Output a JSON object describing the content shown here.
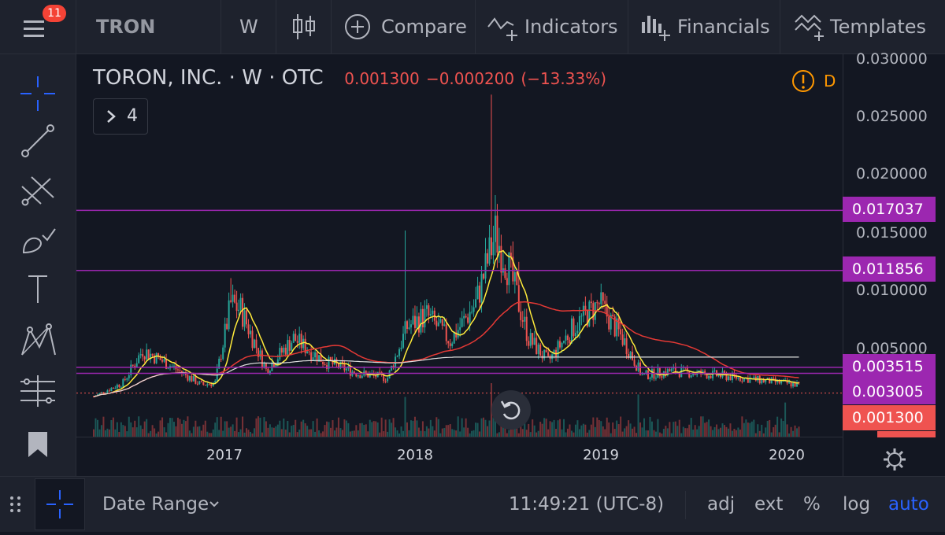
{
  "topbar": {
    "notification_count": "11",
    "symbol": "TRON",
    "interval": "W",
    "compare_label": "Compare",
    "indicators_label": "Indicators",
    "financials_label": "Financials",
    "templates_label": "Templates"
  },
  "legend": {
    "name": "TORON, INC.",
    "interval": "W",
    "exchange": "OTC",
    "price": "0.001300",
    "change": "−0.000200",
    "change_pct": "(−13.33%)",
    "indicators_toggle": "4",
    "alert_letter": "D"
  },
  "colors": {
    "up": "#26a69a",
    "down": "#ef5350",
    "hline": "#9c27b0",
    "ma_fast": "#ffeb3b",
    "ma_slow": "#e53935",
    "ma_long": "#e0e0e0",
    "accent": "#2962ff"
  },
  "price_axis": {
    "ticks": [
      "0.030000",
      "0.025000",
      "0.020000",
      "0.015000",
      "0.010000",
      "0.005000"
    ],
    "labels": [
      {
        "text": "0.017037",
        "color": "#9c27b0"
      },
      {
        "text": "0.011856",
        "color": "#9c27b0"
      },
      {
        "text": "0.003515",
        "color": "#9c27b0"
      },
      {
        "text": "0.003005",
        "color": "#9c27b0"
      },
      {
        "text": "0.001300",
        "color": "#ef5350"
      }
    ]
  },
  "time_axis": {
    "ticks": [
      "2017",
      "2018",
      "2019",
      "2020"
    ]
  },
  "horizontal_lines": [
    0.017037,
    0.011856,
    0.003515,
    0.003005
  ],
  "last_price": 0.0013,
  "bottombar": {
    "date_range_label": "Date Range",
    "clock": "11:49:21 (UTC-8)",
    "adj": "adj",
    "ext": "ext",
    "percent": "%",
    "log": "log",
    "auto": "auto"
  },
  "left_tools": [
    "crosshair-icon",
    "trendline-icon",
    "pitchfork-icon",
    "brush-icon",
    "text-tool-icon",
    "pattern-icon",
    "measure-icon",
    "bookmark-icon"
  ]
}
